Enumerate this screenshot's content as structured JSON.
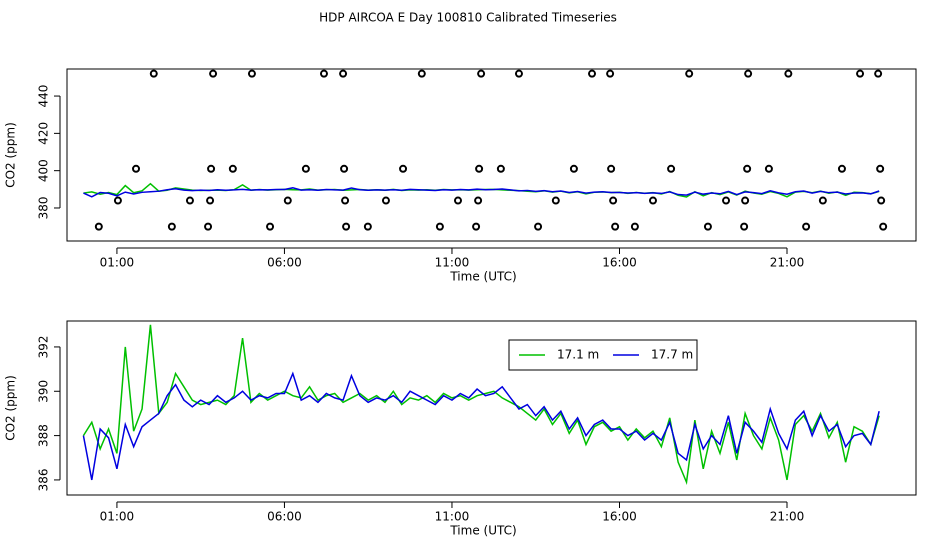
{
  "title": "HDP AIRCOA E  Day 100810  Calibrated Timeseries",
  "chart_data": [
    {
      "type": "line",
      "xlabel": "Time (UTC)",
      "ylabel": "CO2 (ppm)",
      "xlim": [
        -0.49,
        24.85
      ],
      "ylim": [
        362.3,
        454.5
      ],
      "xticks": [
        {
          "value": 1,
          "label": "01:00"
        },
        {
          "value": 6,
          "label": "06:00"
        },
        {
          "value": 11,
          "label": "11:00"
        },
        {
          "value": 16,
          "label": "16:00"
        },
        {
          "value": 21,
          "label": "21:00"
        }
      ],
      "yticks": [
        380,
        400,
        420,
        440
      ],
      "x": [
        0,
        0.25,
        0.5,
        0.75,
        1,
        1.25,
        1.5,
        1.75,
        2,
        2.25,
        2.5,
        2.75,
        3,
        3.25,
        3.5,
        3.75,
        4,
        4.25,
        4.5,
        4.75,
        5,
        5.25,
        5.5,
        5.75,
        6,
        6.25,
        6.5,
        6.75,
        7,
        7.25,
        7.5,
        7.75,
        8,
        8.25,
        8.5,
        8.75,
        9,
        9.25,
        9.5,
        9.75,
        10,
        10.25,
        10.5,
        10.75,
        11,
        11.25,
        11.5,
        11.75,
        12,
        12.25,
        12.5,
        12.75,
        13,
        13.25,
        13.5,
        13.75,
        14,
        14.25,
        14.5,
        14.75,
        15,
        15.25,
        15.5,
        15.75,
        16,
        16.25,
        16.5,
        16.75,
        17,
        17.25,
        17.5,
        17.75,
        18,
        18.25,
        18.5,
        18.75,
        19,
        19.25,
        19.5,
        19.75,
        20,
        20.25,
        20.5,
        20.75,
        21,
        21.25,
        21.5,
        21.75,
        22,
        22.25,
        22.5,
        22.75,
        23,
        23.25,
        23.5,
        23.75
      ],
      "series": [
        {
          "color": "#00c000",
          "values": [
            388.0,
            388.6,
            387.4,
            388.3,
            387.2,
            392.0,
            388.2,
            389.2,
            393.0,
            389.0,
            389.5,
            390.8,
            390.2,
            389.6,
            389.4,
            389.5,
            389.6,
            389.4,
            389.8,
            392.4,
            389.5,
            389.9,
            389.6,
            389.8,
            390.0,
            389.8,
            389.7,
            390.2,
            389.6,
            389.8,
            389.9,
            389.5,
            389.7,
            389.9,
            389.6,
            389.8,
            389.5,
            390.0,
            389.4,
            389.7,
            389.6,
            389.8,
            389.5,
            389.9,
            389.7,
            389.8,
            389.6,
            389.8,
            389.9,
            390.0,
            389.7,
            389.5,
            389.3,
            389.0,
            388.7,
            389.2,
            388.5,
            389.0,
            388.1,
            388.7,
            387.6,
            388.4,
            388.6,
            388.2,
            388.4,
            387.8,
            388.3,
            387.9,
            388.2,
            387.5,
            388.8,
            386.8,
            385.9,
            388.7,
            386.5,
            388.2,
            387.2,
            388.6,
            386.9,
            389.0,
            388.0,
            387.4,
            388.8,
            387.8,
            386.0,
            388.5,
            388.9,
            388.2,
            389.0,
            387.9,
            388.6,
            386.8,
            388.4,
            388.2,
            387.6,
            388.9
          ]
        },
        {
          "color": "#0000e0",
          "values": [
            388.0,
            386.0,
            388.3,
            387.9,
            386.5,
            388.5,
            387.5,
            388.4,
            388.7,
            389.0,
            389.8,
            390.3,
            389.6,
            389.3,
            389.6,
            389.4,
            389.8,
            389.5,
            389.7,
            390.0,
            389.6,
            389.8,
            389.7,
            389.9,
            389.9,
            390.8,
            389.6,
            389.8,
            389.5,
            389.9,
            389.7,
            389.6,
            390.7,
            389.8,
            389.5,
            389.7,
            389.6,
            389.8,
            389.5,
            390.0,
            389.8,
            389.6,
            389.4,
            389.8,
            389.6,
            389.9,
            389.7,
            390.1,
            389.8,
            389.9,
            390.2,
            389.7,
            389.2,
            389.4,
            388.9,
            389.3,
            388.7,
            389.1,
            388.3,
            388.8,
            388.0,
            388.5,
            388.7,
            388.3,
            388.3,
            388.0,
            388.2,
            387.8,
            388.1,
            387.8,
            388.6,
            387.2,
            386.9,
            388.5,
            387.4,
            388.0,
            387.6,
            388.9,
            387.2,
            388.6,
            388.2,
            387.7,
            389.2,
            388.1,
            387.4,
            388.7,
            389.1,
            388.0,
            388.9,
            388.2,
            388.5,
            387.5,
            388.0,
            388.1,
            387.6,
            389.1
          ]
        }
      ],
      "points": {
        "color": "#000000",
        "x": [
          2.1,
          3.87,
          5.03,
          7.18,
          7.75,
          10.1,
          11.87,
          13.0,
          15.18,
          15.72,
          18.08,
          19.84,
          21.04,
          23.18,
          23.72,
          1.57,
          3.81,
          4.46,
          6.64,
          7.78,
          9.54,
          11.81,
          12.46,
          14.64,
          15.75,
          17.54,
          19.81,
          20.46,
          22.64,
          23.78,
          1.03,
          3.18,
          3.78,
          6.1,
          7.81,
          9.03,
          11.18,
          11.78,
          14.1,
          15.81,
          17.0,
          19.18,
          19.75,
          22.07,
          23.81,
          0.46,
          2.64,
          3.72,
          5.57,
          7.84,
          8.49,
          10.64,
          11.72,
          13.57,
          15.87,
          16.46,
          18.64,
          19.72,
          21.57,
          23.87
        ],
        "values": [
          452,
          452,
          452,
          452,
          452,
          452,
          452,
          452,
          452,
          452,
          452,
          452,
          452,
          452,
          452,
          401,
          401,
          401,
          401,
          401,
          401,
          401,
          401,
          401,
          401,
          401,
          401,
          401,
          401,
          401,
          384,
          384,
          384,
          384,
          384,
          384,
          384,
          384,
          384,
          384,
          384,
          384,
          384,
          384,
          384,
          370,
          370,
          370,
          370,
          370,
          370,
          370,
          370,
          370,
          370,
          370,
          370,
          370,
          370,
          370
        ]
      }
    },
    {
      "type": "line",
      "xlabel": "Time (UTC)",
      "ylabel": "CO2 (ppm)",
      "xlim": [
        -0.49,
        24.85
      ],
      "ylim": [
        385.32,
        393.17
      ],
      "xticks": [
        {
          "value": 1,
          "label": "01:00"
        },
        {
          "value": 6,
          "label": "06:00"
        },
        {
          "value": 11,
          "label": "11:00"
        },
        {
          "value": 16,
          "label": "16:00"
        },
        {
          "value": 21,
          "label": "21:00"
        }
      ],
      "yticks": [
        386,
        388,
        390,
        392
      ],
      "legend": "top",
      "x": [
        0,
        0.25,
        0.5,
        0.75,
        1,
        1.25,
        1.5,
        1.75,
        2,
        2.25,
        2.5,
        2.75,
        3,
        3.25,
        3.5,
        3.75,
        4,
        4.25,
        4.5,
        4.75,
        5,
        5.25,
        5.5,
        5.75,
        6,
        6.25,
        6.5,
        6.75,
        7,
        7.25,
        7.5,
        7.75,
        8,
        8.25,
        8.5,
        8.75,
        9,
        9.25,
        9.5,
        9.75,
        10,
        10.25,
        10.5,
        10.75,
        11,
        11.25,
        11.5,
        11.75,
        12,
        12.25,
        12.5,
        12.75,
        13,
        13.25,
        13.5,
        13.75,
        14,
        14.25,
        14.5,
        14.75,
        15,
        15.25,
        15.5,
        15.75,
        16,
        16.25,
        16.5,
        16.75,
        17,
        17.25,
        17.5,
        17.75,
        18,
        18.25,
        18.5,
        18.75,
        19,
        19.25,
        19.5,
        19.75,
        20,
        20.25,
        20.5,
        20.75,
        21,
        21.25,
        21.5,
        21.75,
        22,
        22.25,
        22.5,
        22.75,
        23,
        23.25,
        23.5,
        23.75
      ],
      "series": [
        {
          "name": "17.1 m",
          "color": "#00c000",
          "values": [
            388.0,
            388.6,
            387.4,
            388.3,
            387.2,
            392.0,
            388.2,
            389.2,
            393.0,
            389.0,
            389.5,
            390.8,
            390.2,
            389.6,
            389.4,
            389.5,
            389.6,
            389.4,
            389.8,
            392.4,
            389.5,
            389.9,
            389.6,
            389.8,
            390.0,
            389.8,
            389.7,
            390.2,
            389.6,
            389.8,
            389.9,
            389.5,
            389.7,
            389.9,
            389.6,
            389.8,
            389.5,
            390.0,
            389.4,
            389.7,
            389.6,
            389.8,
            389.5,
            389.9,
            389.7,
            389.8,
            389.6,
            389.8,
            389.9,
            390.0,
            389.7,
            389.5,
            389.3,
            389.0,
            388.7,
            389.2,
            388.5,
            389.0,
            388.1,
            388.7,
            387.6,
            388.4,
            388.6,
            388.2,
            388.4,
            387.8,
            388.3,
            387.9,
            388.2,
            387.5,
            388.8,
            386.8,
            385.9,
            388.7,
            386.5,
            388.2,
            387.2,
            388.6,
            386.9,
            389.0,
            388.0,
            387.4,
            388.8,
            387.8,
            386.0,
            388.5,
            388.9,
            388.2,
            389.0,
            387.9,
            388.6,
            386.8,
            388.4,
            388.2,
            387.6,
            388.9
          ]
        },
        {
          "name": "17.7 m",
          "color": "#0000e0",
          "values": [
            388.0,
            386.0,
            388.3,
            387.9,
            386.5,
            388.5,
            387.5,
            388.4,
            388.7,
            389.0,
            389.8,
            390.3,
            389.6,
            389.3,
            389.6,
            389.4,
            389.8,
            389.5,
            389.7,
            390.0,
            389.6,
            389.8,
            389.7,
            389.9,
            389.9,
            390.8,
            389.6,
            389.8,
            389.5,
            389.9,
            389.7,
            389.6,
            390.7,
            389.8,
            389.5,
            389.7,
            389.6,
            389.8,
            389.5,
            390.0,
            389.8,
            389.6,
            389.4,
            389.8,
            389.6,
            389.9,
            389.7,
            390.1,
            389.8,
            389.9,
            390.2,
            389.7,
            389.2,
            389.4,
            388.9,
            389.3,
            388.7,
            389.1,
            388.3,
            388.8,
            388.0,
            388.5,
            388.7,
            388.3,
            388.3,
            388.0,
            388.2,
            387.8,
            388.1,
            387.8,
            388.6,
            387.2,
            386.9,
            388.5,
            387.4,
            388.0,
            387.6,
            388.9,
            387.2,
            388.6,
            388.2,
            387.7,
            389.2,
            388.1,
            387.4,
            388.7,
            389.1,
            388.0,
            388.9,
            388.2,
            388.5,
            387.5,
            388.0,
            388.1,
            387.6,
            389.1
          ]
        }
      ]
    }
  ]
}
